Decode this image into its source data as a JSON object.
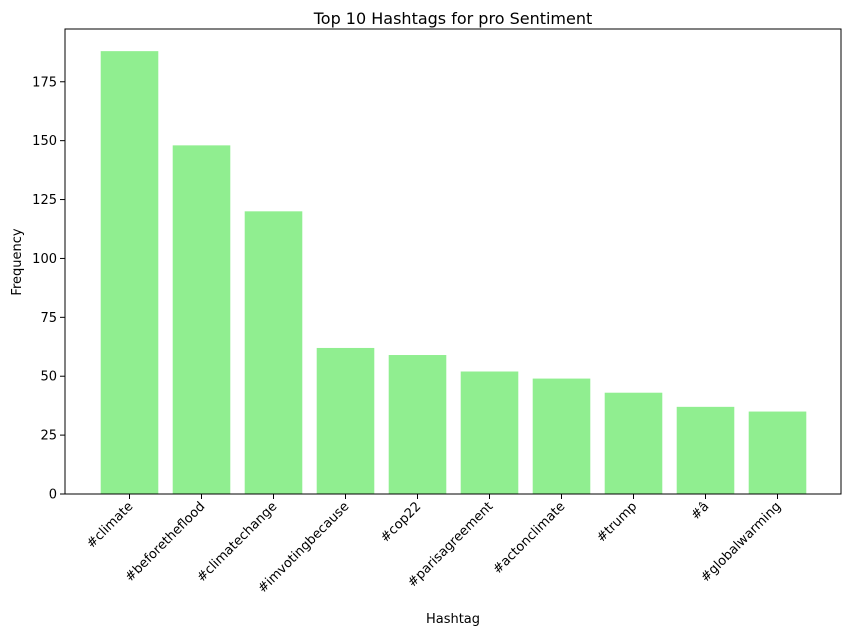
{
  "chart_data": {
    "type": "bar",
    "title": "Top 10 Hashtags for pro Sentiment",
    "xlabel": "Hashtag",
    "ylabel": "Frequency",
    "categories": [
      "#climate",
      "#beforetheflood",
      "#climatechange",
      "#imvotingbecause",
      "#cop22",
      "#parisagreement",
      "#actonclimate",
      "#trump",
      "#â",
      "#globalwarming"
    ],
    "values": [
      188,
      148,
      120,
      62,
      59,
      52,
      49,
      43,
      37,
      35
    ],
    "ylim": [
      0,
      197.4
    ],
    "yticks": [
      0,
      25,
      50,
      75,
      100,
      125,
      150,
      175
    ],
    "bar_color": "#90ee90",
    "grid": false,
    "legend": "none"
  }
}
